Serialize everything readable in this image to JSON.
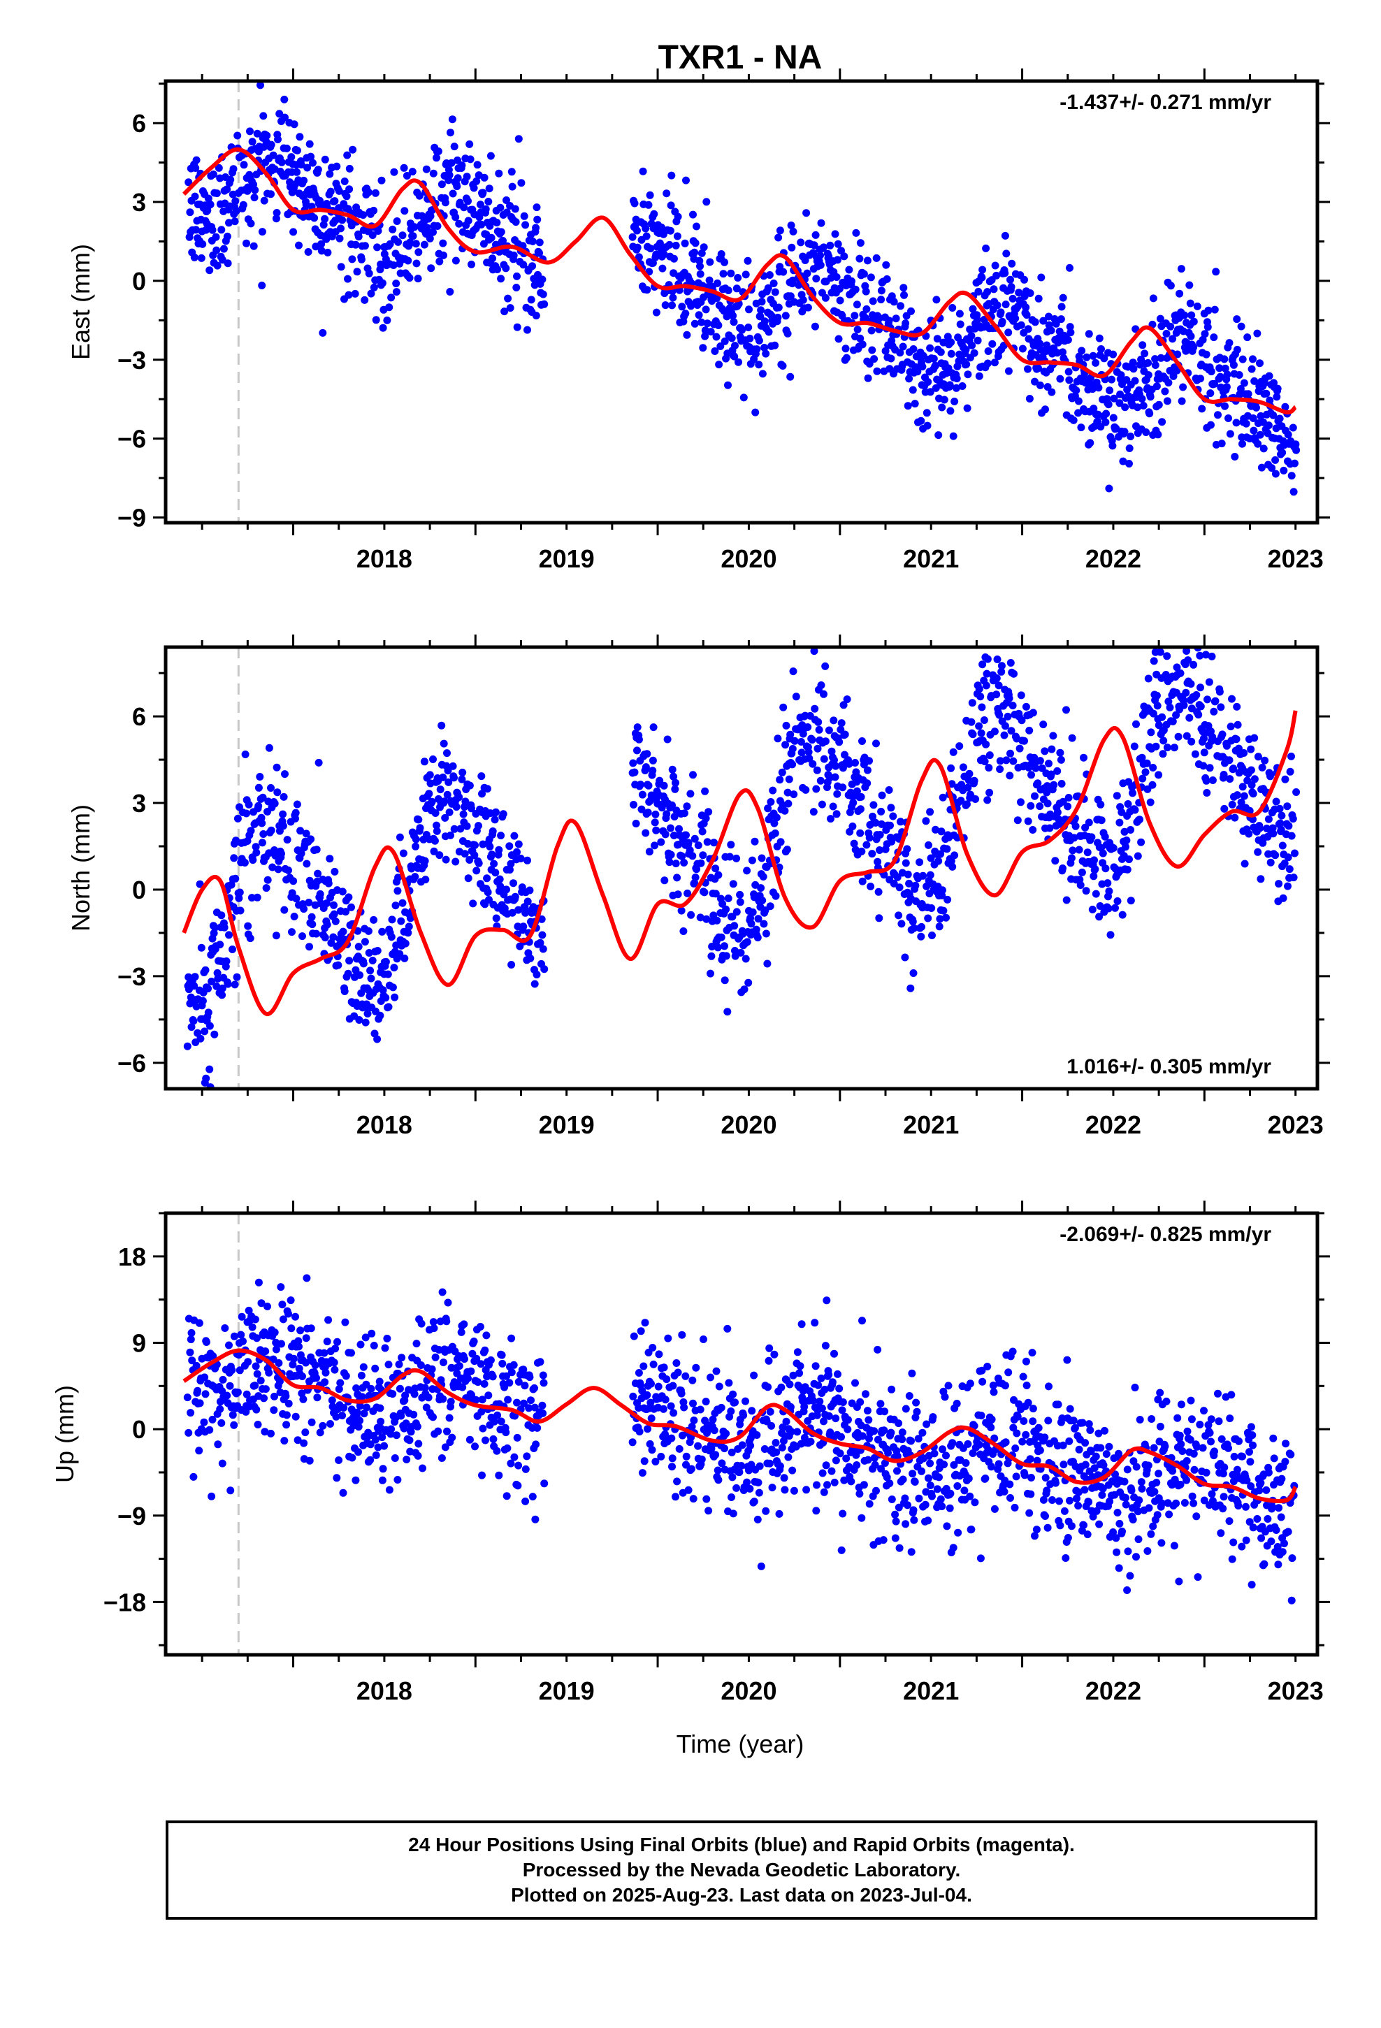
{
  "title": "TXR1 - NA",
  "xlabel": "Time (year)",
  "footer": {
    "line1": "24 Hour Positions Using Final Orbits (blue) and Rapid Orbits (magenta).",
    "line2": "Processed by the Nevada Geodetic Laboratory.",
    "line3": "Plotted on 2025-Aug-23. Last data on 2023-Jul-04."
  },
  "colors": {
    "points": "#0000ff",
    "model": "#ff0000",
    "equipment_line": "#c8c8c8",
    "frame": "#000000"
  },
  "chart_data": [
    {
      "type": "scatter",
      "ylabel": "East (mm)",
      "rate": "-1.437+/- 0.271 mm/yr",
      "rate_position": "top-right",
      "xlim": [
        2017.3,
        2023.62
      ],
      "ylim": [
        -9.2,
        7.6
      ],
      "yticks": [
        6,
        3,
        0,
        -3,
        -6,
        -9
      ],
      "xticks": [
        2018,
        2019,
        2020,
        2021,
        2022,
        2023
      ],
      "equipment_change": 2017.7,
      "data_gap": [
        2019.38,
        2019.86
      ],
      "trend": {
        "x0": 2017.4,
        "y0": 4.0,
        "slope": -1.437
      },
      "seasonal": {
        "amplitude": 1.3,
        "phase": 0.3,
        "amplitude2": 0.35
      },
      "noise_sd": 1.2,
      "model_curve": {
        "x": [
          2017.4,
          2017.55,
          2017.7,
          2017.85,
          2018.0,
          2018.15,
          2018.3,
          2018.45,
          2018.6,
          2018.7,
          2018.85,
          2019.0,
          2019.2,
          2019.4,
          2019.55,
          2019.7,
          2019.85,
          2020.0,
          2020.15,
          2020.3,
          2020.45,
          2020.6,
          2020.7,
          2020.85,
          2021.0,
          2021.15,
          2021.3,
          2021.45,
          2021.6,
          2021.7,
          2021.85,
          2022.0,
          2022.15,
          2022.3,
          2022.45,
          2022.6,
          2022.7,
          2022.85,
          2023.0,
          2023.15,
          2023.3,
          2023.45,
          2023.5
        ],
        "y": [
          3.3,
          4.3,
          5.0,
          4.1,
          2.7,
          2.7,
          2.5,
          2.1,
          3.5,
          3.7,
          2.0,
          1.1,
          1.3,
          0.7,
          1.5,
          2.4,
          1.0,
          -0.2,
          -0.2,
          -0.4,
          -0.7,
          0.6,
          0.9,
          -0.6,
          -1.6,
          -1.6,
          -1.9,
          -2.0,
          -0.8,
          -0.5,
          -1.7,
          -3.0,
          -3.1,
          -3.2,
          -3.6,
          -2.3,
          -1.8,
          -3.1,
          -4.5,
          -4.5,
          -4.6,
          -5.0,
          -4.8
        ]
      }
    },
    {
      "type": "scatter",
      "ylabel": "North (mm)",
      "rate": "1.016+/- 0.305 mm/yr",
      "rate_position": "bottom-right",
      "xlim": [
        2017.3,
        2023.62
      ],
      "ylim": [
        -6.9,
        8.4
      ],
      "yticks": [
        6,
        3,
        0,
        -3,
        -6
      ],
      "xticks": [
        2018,
        2019,
        2020,
        2021,
        2022,
        2023
      ],
      "equipment_change": 2017.7,
      "data_gap": [
        2019.38,
        2019.86
      ],
      "trend": {
        "x0": 2017.4,
        "y0": -1.3,
        "slope": 1.016
      },
      "seasonal": {
        "amplitude": 2.7,
        "phase": -0.65,
        "amplitude2": 0.6
      },
      "noise_sd": 1.2,
      "model_curve": {
        "x": [
          2017.4,
          2017.5,
          2017.6,
          2017.7,
          2017.85,
          2018.0,
          2018.15,
          2018.3,
          2018.45,
          2018.55,
          2018.7,
          2018.85,
          2019.0,
          2019.15,
          2019.3,
          2019.45,
          2019.55,
          2019.7,
          2019.85,
          2020.0,
          2020.15,
          2020.3,
          2020.45,
          2020.55,
          2020.7,
          2020.85,
          2021.0,
          2021.15,
          2021.3,
          2021.45,
          2021.55,
          2021.7,
          2021.85,
          2022.0,
          2022.15,
          2022.3,
          2022.45,
          2022.55,
          2022.7,
          2022.85,
          2023.0,
          2023.15,
          2023.3,
          2023.45,
          2023.5
        ],
        "y": [
          -1.5,
          0.0,
          0.3,
          -2.0,
          -4.3,
          -2.9,
          -2.4,
          -1.8,
          0.8,
          1.3,
          -1.5,
          -3.3,
          -1.6,
          -1.4,
          -1.6,
          1.5,
          2.3,
          -0.2,
          -2.4,
          -0.5,
          -0.5,
          1.0,
          3.3,
          2.8,
          -0.3,
          -1.3,
          0.3,
          0.6,
          1.0,
          3.8,
          4.3,
          1.2,
          -0.2,
          1.3,
          1.7,
          2.8,
          5.2,
          5.3,
          2.3,
          0.8,
          1.9,
          2.7,
          2.7,
          4.8,
          6.2
        ]
      }
    },
    {
      "type": "scatter",
      "ylabel": "Up (mm)",
      "rate": "-2.069+/- 0.825 mm/yr",
      "rate_position": "top-right",
      "xlim": [
        2017.3,
        2023.62
      ],
      "ylim": [
        -23.5,
        22.5
      ],
      "yticks": [
        18,
        9,
        0,
        -9,
        -18
      ],
      "xticks": [
        2018,
        2019,
        2020,
        2021,
        2022,
        2023
      ],
      "equipment_change": 2017.7,
      "data_gap": [
        2019.38,
        2019.86
      ],
      "trend": {
        "x0": 2017.4,
        "y0": 6.0,
        "slope": -2.069
      },
      "seasonal": {
        "amplitude": 2.0,
        "phase": 0.3,
        "amplitude2": 0.5
      },
      "noise_sd": 4.0,
      "model_curve": {
        "x": [
          2017.4,
          2017.55,
          2017.7,
          2017.85,
          2018.0,
          2018.15,
          2018.3,
          2018.45,
          2018.6,
          2018.7,
          2018.85,
          2019.0,
          2019.2,
          2019.35,
          2019.5,
          2019.65,
          2019.8,
          2019.95,
          2020.1,
          2020.3,
          2020.45,
          2020.6,
          2020.7,
          2020.85,
          2021.0,
          2021.15,
          2021.3,
          2021.45,
          2021.6,
          2021.7,
          2021.85,
          2022.0,
          2022.15,
          2022.3,
          2022.45,
          2022.6,
          2022.7,
          2022.85,
          2023.0,
          2023.15,
          2023.3,
          2023.45,
          2023.5
        ],
        "y": [
          5.0,
          6.9,
          8.2,
          7.2,
          4.6,
          4.3,
          3.0,
          3.2,
          5.6,
          6.0,
          3.8,
          2.5,
          2.0,
          0.8,
          2.6,
          4.3,
          2.5,
          0.6,
          0.3,
          -1.2,
          -0.8,
          2.3,
          2.0,
          -0.4,
          -1.5,
          -2.0,
          -3.3,
          -2.4,
          -0.3,
          0.1,
          -1.6,
          -3.6,
          -3.9,
          -5.5,
          -5.0,
          -2.2,
          -2.4,
          -3.8,
          -5.7,
          -6.0,
          -7.2,
          -7.4,
          -6.0
        ]
      }
    }
  ]
}
